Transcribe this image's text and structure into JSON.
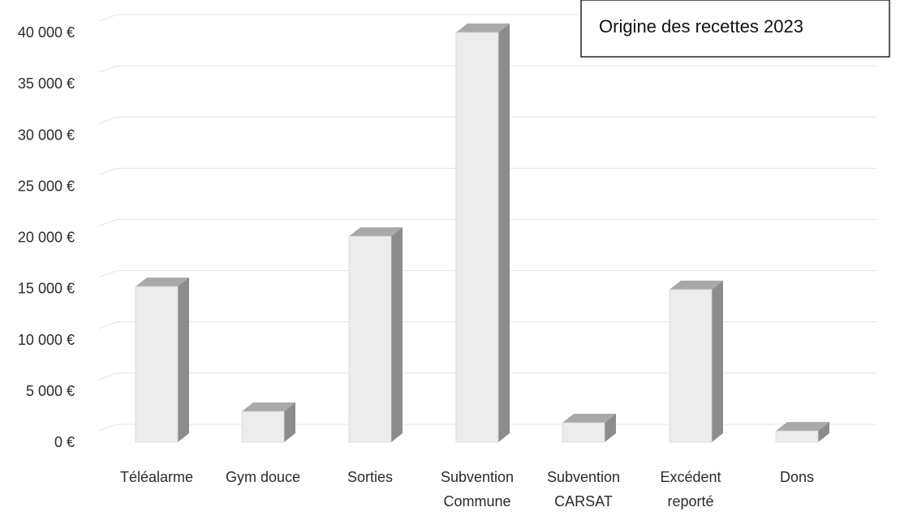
{
  "chart_data": {
    "type": "bar",
    "title": "Origine des recettes 2023",
    "categories": [
      [
        "Téléalarme"
      ],
      [
        "Gym douce"
      ],
      [
        "Sorties"
      ],
      [
        "Subvention",
        "Commune"
      ],
      [
        "Subvention",
        "CARSAT"
      ],
      [
        "Excédent",
        "reporté"
      ],
      [
        "Dons"
      ]
    ],
    "values": [
      15200,
      3000,
      20100,
      40000,
      1900,
      14900,
      1100
    ],
    "ylim": [
      0,
      40000
    ],
    "yticks": [
      "0 €",
      "5 000 €",
      "10 000 €",
      "15 000 €",
      "20 000 €",
      "25 000 €",
      "30 000 €",
      "35 000 €",
      "40 000 €"
    ],
    "style": "3d-column",
    "grid": true,
    "colors": {
      "front": "#ececec",
      "top": "#a9a9a9",
      "side": "#8c8c8c",
      "grid": "#e4e4e4"
    }
  }
}
